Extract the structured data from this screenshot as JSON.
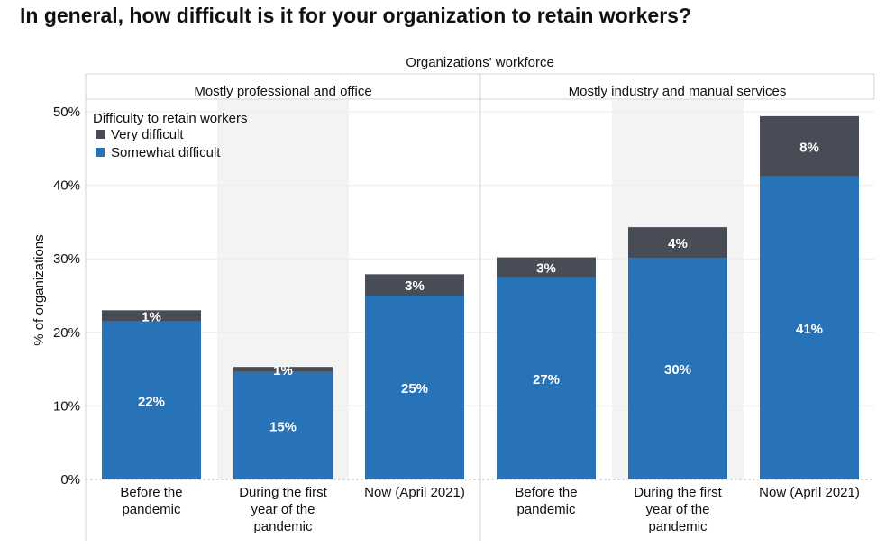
{
  "page_title": "In general, how difficult is it for your organization to retain workers?",
  "chart_data": {
    "type": "bar",
    "stacked": true,
    "title": "In general, how difficult is it for your organization to retain workers?",
    "super_header": "Organizations' workforce",
    "ylabel": "% of organizations",
    "ylim": [
      0,
      55
    ],
    "y_ticks": [
      0,
      10,
      20,
      30,
      40,
      50
    ],
    "y_tick_labels": [
      "0%",
      "10%",
      "20%",
      "30%",
      "40%",
      "50%"
    ],
    "legend": {
      "title": "Difficulty to retain workers",
      "position": "top-left",
      "entries": [
        {
          "name": "Very difficult",
          "color": "#474c56"
        },
        {
          "name": "Somewhat difficult",
          "color": "#2873b8"
        }
      ]
    },
    "groups": [
      {
        "name": "Mostly professional and office",
        "categories": [
          {
            "label_lines": [
              "Before the",
              "pandemic"
            ],
            "somewhat": 21.5,
            "very": 1.5,
            "somewhat_label": "22%",
            "very_label": "1%"
          },
          {
            "label_lines": [
              "During the first",
              "year of the",
              "pandemic"
            ],
            "somewhat": 14.6,
            "very": 0.7,
            "somewhat_label": "15%",
            "very_label": "1%"
          },
          {
            "label_lines": [
              "Now (April 2021)"
            ],
            "somewhat": 25.0,
            "very": 2.9,
            "somewhat_label": "25%",
            "very_label": "3%"
          }
        ]
      },
      {
        "name": "Mostly industry and manual services",
        "categories": [
          {
            "label_lines": [
              "Before the",
              "pandemic"
            ],
            "somewhat": 27.5,
            "very": 2.7,
            "somewhat_label": "27%",
            "very_label": "3%"
          },
          {
            "label_lines": [
              "During the first",
              "year of the",
              "pandemic"
            ],
            "somewhat": 30.1,
            "very": 4.2,
            "somewhat_label": "30%",
            "very_label": "4%"
          },
          {
            "label_lines": [
              "Now (April 2021)"
            ],
            "somewhat": 41.2,
            "very": 8.2,
            "somewhat_label": "41%",
            "very_label": "8%"
          }
        ]
      }
    ]
  }
}
